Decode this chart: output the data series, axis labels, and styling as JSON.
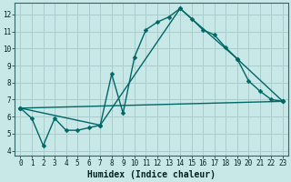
{
  "xlabel": "Humidex (Indice chaleur)",
  "bg_color": "#c8e8e8",
  "grid_color": "#aacccc",
  "line_color": "#006666",
  "xlim": [
    -0.5,
    23.5
  ],
  "ylim": [
    3.7,
    12.7
  ],
  "xticks": [
    0,
    1,
    2,
    3,
    4,
    5,
    6,
    7,
    8,
    9,
    10,
    11,
    12,
    13,
    14,
    15,
    16,
    17,
    18,
    19,
    20,
    21,
    22,
    23
  ],
  "yticks": [
    4,
    5,
    6,
    7,
    8,
    9,
    10,
    11,
    12
  ],
  "line1_x": [
    0,
    1,
    2,
    3,
    4,
    5,
    6,
    7,
    8,
    9,
    10,
    11,
    12,
    13,
    14,
    15,
    16,
    17,
    18,
    19,
    20,
    21,
    22,
    23
  ],
  "line1_y": [
    6.5,
    5.9,
    4.3,
    5.9,
    5.2,
    5.2,
    5.35,
    5.5,
    8.5,
    6.2,
    9.5,
    11.1,
    11.55,
    11.85,
    12.35,
    11.75,
    11.1,
    10.8,
    10.05,
    9.4,
    8.1,
    7.5,
    7.0,
    6.9
  ],
  "line2_x": [
    0,
    7,
    14,
    19,
    23
  ],
  "line2_y": [
    6.5,
    5.5,
    12.35,
    9.4,
    6.9
  ],
  "line3_x": [
    0,
    23
  ],
  "line3_y": [
    6.5,
    6.9
  ],
  "marker_size": 2.5,
  "line_width": 1.0,
  "tick_fontsize": 5.5,
  "xlabel_fontsize": 7.0
}
